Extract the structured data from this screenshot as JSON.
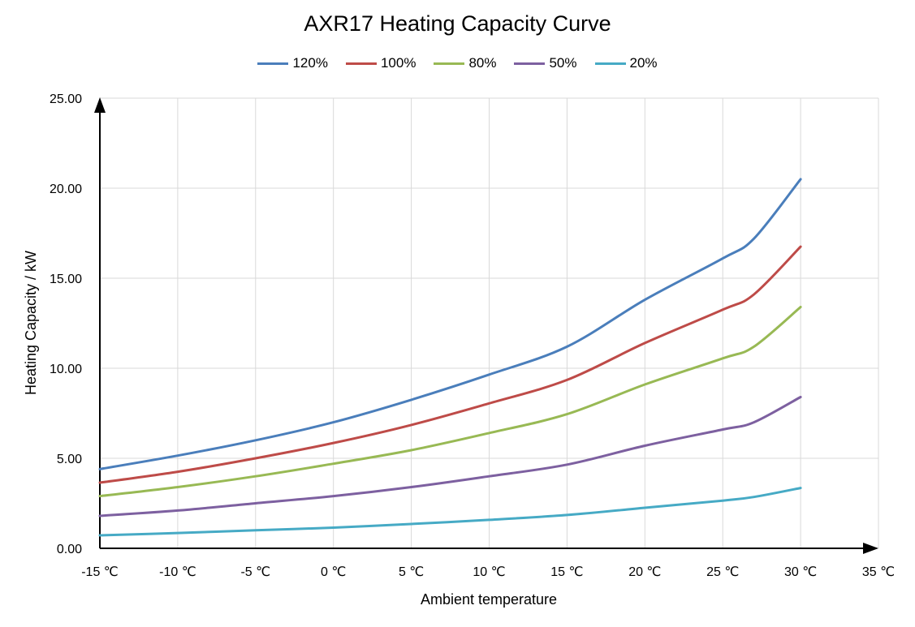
{
  "chart_data": {
    "type": "line",
    "title": "AXR17 Heating Capacity Curve",
    "xlabel": "Ambient temperature",
    "ylabel": "Heating Capacity / kW",
    "xlim": [
      -15,
      35
    ],
    "ylim": [
      0,
      25
    ],
    "x_ticks": [
      -15,
      -10,
      -5,
      0,
      5,
      10,
      15,
      20,
      25,
      30,
      35
    ],
    "x_tick_labels": [
      "-15 ℃",
      "-10 ℃",
      "-5 ℃",
      "0 ℃",
      "5 ℃",
      "10 ℃",
      "15 ℃",
      "20 ℃",
      "25 ℃",
      "30 ℃",
      "35 ℃"
    ],
    "y_ticks": [
      0,
      5,
      10,
      15,
      20,
      25
    ],
    "y_tick_labels": [
      "0.00",
      "5.00",
      "10.00",
      "15.00",
      "20.00",
      "25.00"
    ],
    "grid": true,
    "legend_position": "top",
    "x": [
      -15,
      -10,
      -5,
      0,
      5,
      10,
      15,
      20,
      25,
      27,
      30
    ],
    "series": [
      {
        "name": "120%",
        "color": "#4a7ebb",
        "values": [
          4.4,
          5.15,
          6.0,
          7.0,
          8.25,
          9.65,
          11.2,
          13.8,
          16.1,
          17.2,
          20.5
        ]
      },
      {
        "name": "100%",
        "color": "#be4b48",
        "values": [
          3.65,
          4.25,
          5.0,
          5.85,
          6.85,
          8.05,
          9.35,
          11.4,
          13.25,
          14.1,
          16.75
        ]
      },
      {
        "name": "80%",
        "color": "#98b954",
        "values": [
          2.9,
          3.4,
          4.0,
          4.7,
          5.45,
          6.4,
          7.45,
          9.1,
          10.55,
          11.2,
          13.4
        ]
      },
      {
        "name": "50%",
        "color": "#7d60a0",
        "values": [
          1.8,
          2.1,
          2.5,
          2.9,
          3.4,
          4.0,
          4.65,
          5.7,
          6.6,
          7.0,
          8.4
        ]
      },
      {
        "name": "20%",
        "color": "#46aac5",
        "values": [
          0.72,
          0.85,
          1.0,
          1.15,
          1.35,
          1.58,
          1.85,
          2.25,
          2.65,
          2.85,
          3.35
        ]
      }
    ]
  }
}
